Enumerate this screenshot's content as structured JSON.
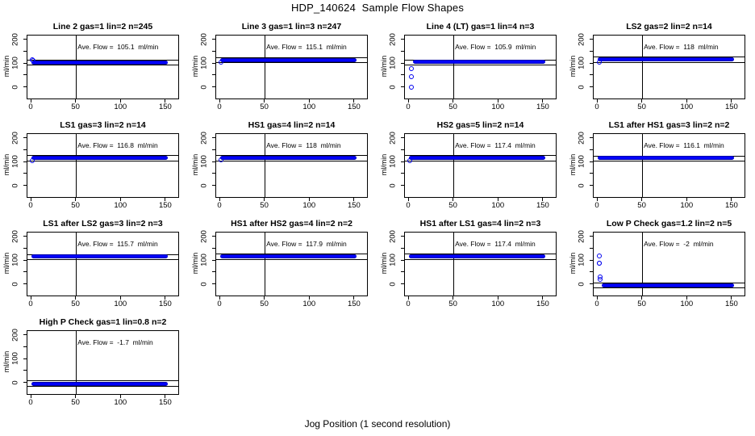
{
  "page": {
    "title": "HDP_140624  Sample Flow Shapes",
    "xlabel": "Jog Position (1 second resolution)",
    "ylabel": "ml/min"
  },
  "colors": {
    "point_blue": "#0202ee",
    "axis_black": "#000000",
    "background": "#ffffff"
  },
  "chart_data": {
    "type": "scatter",
    "title": "HDP_140624  Sample Flow Shapes",
    "xlabel": "Jog Position (1 second resolution)",
    "ylabel": "ml/min",
    "layout": {
      "rows": 4,
      "cols": 4,
      "legend": "none",
      "grid": "off"
    },
    "xlim": [
      -4,
      164
    ],
    "ylim": [
      -47,
      217
    ],
    "x_ticks": [
      0,
      50,
      100,
      150
    ],
    "y_ticks": [
      0,
      50,
      100,
      150,
      200
    ],
    "y_labeled_ticks": [
      0,
      100,
      200
    ],
    "vline_x": 50,
    "panels": [
      {
        "title": "Line 2 gas=1 lin=2 n=245",
        "ave_flow": 105.1,
        "ave_label": "Ave. Flow =  105.1  ml/min",
        "n": 245,
        "band": {
          "x_start": 0,
          "x_end": 152,
          "y": 105.1
        },
        "ref_lines": [
          116.1,
          94.1
        ],
        "start_points": [
          [
            1,
            116
          ],
          [
            2,
            113
          ]
        ]
      },
      {
        "title": "Line 3 gas=1 lin=3 n=247",
        "ave_flow": 115.1,
        "ave_label": "Ave. Flow =  115.1  ml/min",
        "n": 247,
        "band": {
          "x_start": 0,
          "x_end": 152,
          "y": 115.1
        },
        "ref_lines": [
          126.1,
          104.1
        ],
        "start_points": [
          [
            1.5,
            106
          ]
        ]
      },
      {
        "title": "Line 4 (LT) gas=1 lin=4 n=3",
        "ave_flow": 105.9,
        "ave_label": "Ave. Flow =  105.9  ml/min",
        "n": 3,
        "band": {
          "x_start": 5,
          "x_end": 152,
          "y": 105.9
        },
        "ref_lines": [
          116.9,
          94.9
        ],
        "start_points": [
          [
            3,
            -1
          ],
          [
            3,
            45
          ],
          [
            3.5,
            78
          ]
        ]
      },
      {
        "title": "LS2 gas=2 lin=2 n=14",
        "ave_flow": 118,
        "ave_label": "Ave. Flow =  118  ml/min",
        "n": 14,
        "band": {
          "x_start": 0,
          "x_end": 152,
          "y": 118
        },
        "ref_lines": [
          129,
          107
        ],
        "start_points": [
          [
            2,
            107
          ]
        ]
      },
      {
        "title": "LS1 gas=3 lin=2 n=14",
        "ave_flow": 116.8,
        "ave_label": "Ave. Flow =  116.8  ml/min",
        "n": 14,
        "band": {
          "x_start": 0,
          "x_end": 152,
          "y": 116.8
        },
        "ref_lines": [
          127.8,
          105.8
        ],
        "start_points": [
          [
            1.5,
            107
          ]
        ]
      },
      {
        "title": "HS1 gas=4 lin=2 n=14",
        "ave_flow": 118,
        "ave_label": "Ave. Flow =  118  ml/min",
        "n": 14,
        "band": {
          "x_start": 0,
          "x_end": 152,
          "y": 118
        },
        "ref_lines": [
          129,
          107
        ],
        "start_points": [
          [
            1.5,
            109
          ]
        ]
      },
      {
        "title": "HS2 gas=5 lin=2 n=14",
        "ave_flow": 117.4,
        "ave_label": "Ave. Flow =  117.4  ml/min",
        "n": 14,
        "band": {
          "x_start": 0,
          "x_end": 152,
          "y": 117.4
        },
        "ref_lines": [
          128.4,
          106.4
        ],
        "start_points": [
          [
            1.5,
            107
          ]
        ]
      },
      {
        "title": "LS1 after HS1 gas=3 lin=2 n=2",
        "ave_flow": 116.1,
        "ave_label": "Ave. Flow =  116.1  ml/min",
        "n": 2,
        "band": {
          "x_start": 0,
          "x_end": 152,
          "y": 116.1
        },
        "ref_lines": [
          127.1,
          105.1
        ],
        "start_points": []
      },
      {
        "title": "LS1 after LS2 gas=3 lin=2 n=3",
        "ave_flow": 115.7,
        "ave_label": "Ave. Flow =  115.7  ml/min",
        "n": 3,
        "band": {
          "x_start": 0,
          "x_end": 152,
          "y": 115.7
        },
        "ref_lines": [
          126.7,
          104.7
        ],
        "start_points": []
      },
      {
        "title": "HS1 after HS2 gas=4 lin=2 n=2",
        "ave_flow": 117.9,
        "ave_label": "Ave. Flow =  117.9  ml/min",
        "n": 2,
        "band": {
          "x_start": 0,
          "x_end": 152,
          "y": 117.9
        },
        "ref_lines": [
          128.9,
          106.9
        ],
        "start_points": []
      },
      {
        "title": "HS1 after LS1 gas=4 lin=2 n=3",
        "ave_flow": 117.4,
        "ave_label": "Ave. Flow =  117.4  ml/min",
        "n": 3,
        "band": {
          "x_start": 0,
          "x_end": 152,
          "y": 117.4
        },
        "ref_lines": [
          128.4,
          106.4
        ],
        "start_points": []
      },
      {
        "title": "Low P Check gas=1.2 lin=2 n=5",
        "ave_flow": -2,
        "ave_label": "Ave. Flow =  -2  ml/min",
        "n": 5,
        "band": {
          "x_start": 5,
          "x_end": 152,
          "y": -3
        },
        "ref_lines": [
          9,
          -13
        ],
        "start_points": [
          [
            2,
            120
          ],
          [
            2,
            90
          ],
          [
            2.5,
            87
          ],
          [
            3,
            32
          ],
          [
            3.2,
            22
          ]
        ]
      },
      {
        "title": "High P Check gas=1 lin=0.8 n=2",
        "ave_flow": -1.7,
        "ave_label": "Ave. Flow =  -1.7  ml/min",
        "n": 2,
        "band": {
          "x_start": 0,
          "x_end": 152,
          "y": -3.5
        },
        "ref_lines": [
          9.3,
          -12.7
        ],
        "start_points": []
      }
    ]
  }
}
